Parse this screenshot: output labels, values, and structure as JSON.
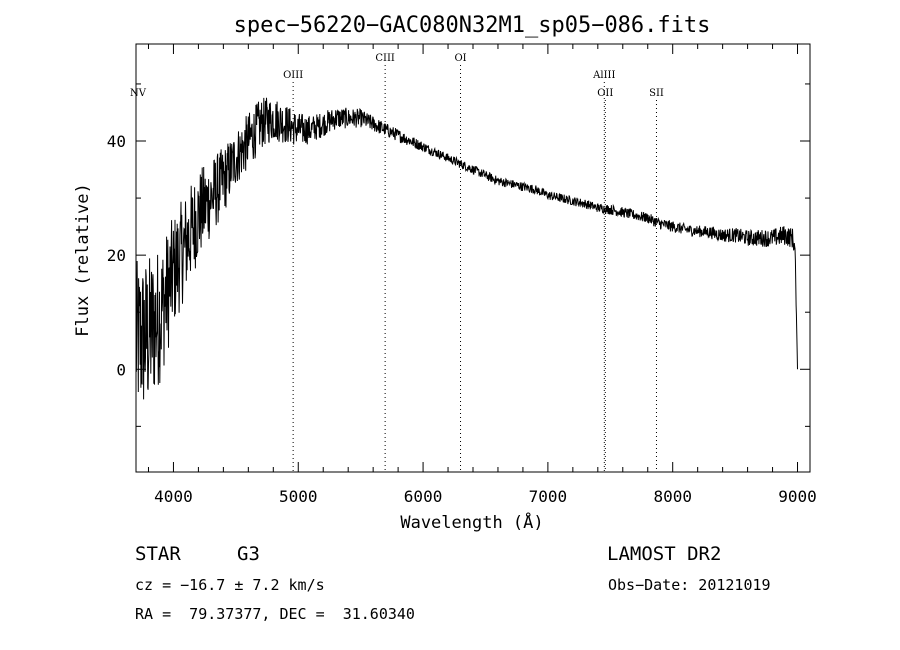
{
  "chart_data": {
    "type": "line",
    "title": "spec−56220−GAC080N32M1_sp05−086.fits",
    "xlabel": "Wavelength (Å)",
    "ylabel": "Flux (relative)",
    "xlim": [
      3700,
      9100
    ],
    "ylim": [
      -18,
      57
    ],
    "x_ticks": [
      {
        "value": 4000,
        "label": "4000"
      },
      {
        "value": 5000,
        "label": "5000"
      },
      {
        "value": 6000,
        "label": "6000"
      },
      {
        "value": 7000,
        "label": "7000"
      },
      {
        "value": 8000,
        "label": "8000"
      },
      {
        "value": 9000,
        "label": "9000"
      }
    ],
    "y_ticks": [
      {
        "value": 0,
        "label": "0"
      },
      {
        "value": 20,
        "label": "20"
      },
      {
        "value": 40,
        "label": "40"
      }
    ],
    "spectral_lines": [
      {
        "name": "NV",
        "wavelength": 3700,
        "label_row": 2
      },
      {
        "name": "OIII",
        "wavelength": 4959,
        "label_row": 1
      },
      {
        "name": "CIII",
        "wavelength": 5696,
        "label_row": 0
      },
      {
        "name": "OI",
        "wavelength": 6300,
        "label_row": 0
      },
      {
        "name": "AlIII",
        "wavelength": 7452,
        "label_row": 1
      },
      {
        "name": "OII",
        "wavelength": 7460,
        "label_row": 2
      },
      {
        "name": "SII",
        "wavelength": 7870,
        "label_row": 2
      }
    ],
    "spectrum": {
      "x": [
        3700,
        3800,
        3900,
        4000,
        4100,
        4200,
        4300,
        4400,
        4500,
        4600,
        4700,
        4800,
        4900,
        5000,
        5100,
        5200,
        5300,
        5400,
        5500,
        5600,
        5700,
        5800,
        5900,
        6000,
        6100,
        6200,
        6300,
        6400,
        6500,
        6600,
        6700,
        6800,
        6900,
        7000,
        7100,
        7200,
        7300,
        7400,
        7500,
        7600,
        7700,
        7800,
        7900,
        8000,
        8100,
        8200,
        8300,
        8400,
        8500,
        8600,
        8700,
        8800,
        8900,
        8960,
        8980,
        9000
      ],
      "y": [
        5,
        6,
        10,
        17,
        22,
        27,
        30,
        33,
        37,
        40,
        43,
        44,
        43,
        42,
        42,
        43,
        44,
        44,
        44,
        43,
        42,
        41,
        40,
        39,
        38,
        37,
        36,
        35,
        34,
        33,
        32.5,
        32,
        31.5,
        30.5,
        30,
        29.5,
        29,
        28.3,
        28,
        27.5,
        27,
        26.5,
        25.5,
        25,
        24.5,
        24.2,
        24,
        23.5,
        23.5,
        23,
        23,
        23,
        23.5,
        23,
        21,
        0
      ],
      "noise": [
        14,
        14,
        12,
        10,
        9,
        8,
        7,
        6,
        5,
        5,
        4.5,
        4,
        3.5,
        3,
        2.5,
        2.2,
        2,
        1.8,
        1.6,
        1.4,
        1.2,
        1.1,
        1,
        0.9,
        0.8,
        0.8,
        0.8,
        0.8,
        0.8,
        0.8,
        0.8,
        0.8,
        0.8,
        0.8,
        0.8,
        0.8,
        0.8,
        0.8,
        0.9,
        0.9,
        0.9,
        0.9,
        1,
        1,
        1,
        1,
        1.1,
        1.2,
        1.3,
        1.4,
        1.5,
        1.6,
        1.8,
        1.8,
        1.5,
        0
      ]
    }
  },
  "footer": {
    "object_type": "STAR",
    "subclass": "G3",
    "survey": "LAMOST DR2",
    "redshift_text": "cz = −16.7 ± 7.2 km/s",
    "obs_date_text": "Obs−Date: 20121019",
    "coords_text": "RA =  79.37377, DEC =  31.60340"
  }
}
